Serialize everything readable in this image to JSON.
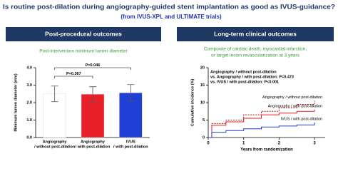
{
  "title": "Is routine post-dilation during angiography-guided stent implantation as good as IVUS-guidance?",
  "subtitle": "(from IVUS-XPL and ULTIMATE trials)",
  "panels": [
    {
      "header": "Post-procedural outcomes",
      "caption": [
        "Post-intervention minimum lumen diameter"
      ]
    },
    {
      "header": "Long-term clinical outcomes",
      "caption": [
        "Composite of cardiac death, myocardial infarction,",
        "or target lesion revascularization at 3 years"
      ]
    }
  ],
  "chart_data": [
    {
      "type": "bar",
      "categories": [
        [
          "Angiography",
          "/ without post-dilation"
        ],
        [
          "Angiography",
          "/ with post-dilation"
        ],
        [
          "IVUS",
          "/ with post-dilation"
        ]
      ],
      "values": [
        2.5,
        2.48,
        2.56
      ],
      "errors": [
        0.45,
        0.43,
        0.47
      ],
      "colors": [
        "#ffffff",
        "#e8202a",
        "#1f3fd6"
      ],
      "ylabel": "Minimum lumen diameter (mm)",
      "ylim": [
        0,
        4
      ],
      "yticks": [
        {
          "value": 0,
          "label": "0.0"
        },
        {
          "value": 1,
          "label": "1.0"
        },
        {
          "value": 2,
          "label": "2.0"
        },
        {
          "value": 3,
          "label": "3.0"
        },
        {
          "value": 4,
          "label": "4.0"
        }
      ],
      "annotations": [
        "P=0.367",
        "P=0.046"
      ]
    },
    {
      "type": "line",
      "x": [
        0,
        0.1,
        0.5,
        1,
        1.5,
        2,
        2.5,
        3
      ],
      "series": [
        {
          "name": "Angiography / without post-dilation",
          "color": "#b01818",
          "dashed": true,
          "values": [
            0,
            4,
            5,
            6.5,
            7.5,
            8.5,
            9.5,
            10.5
          ]
        },
        {
          "name": "Angiography / with post-dilation",
          "color": "#e8202a",
          "dashed": false,
          "values": [
            0,
            3.5,
            4.5,
            5.5,
            6.5,
            7,
            7.5,
            8
          ]
        },
        {
          "name": "IVUS / with post-dilation",
          "color": "#1f3fd6",
          "dashed": false,
          "values": [
            0,
            1.5,
            2,
            2.5,
            3,
            3.3,
            3.6,
            4.3
          ]
        }
      ],
      "annotations": [
        "Angiography / without post-dilation",
        "vs. Angiography / with post-dilation: P=0.473",
        "vs. IVUS / with post-dilation: P<0.001"
      ],
      "xlabel": "Years from randomization",
      "ylabel": "Cumulative incidence (%)",
      "xlim": [
        0,
        3.3
      ],
      "xticks": [
        0,
        1,
        2,
        3
      ],
      "ylim": [
        0,
        20
      ],
      "yticks": [
        0,
        5,
        10,
        15,
        20
      ]
    }
  ]
}
